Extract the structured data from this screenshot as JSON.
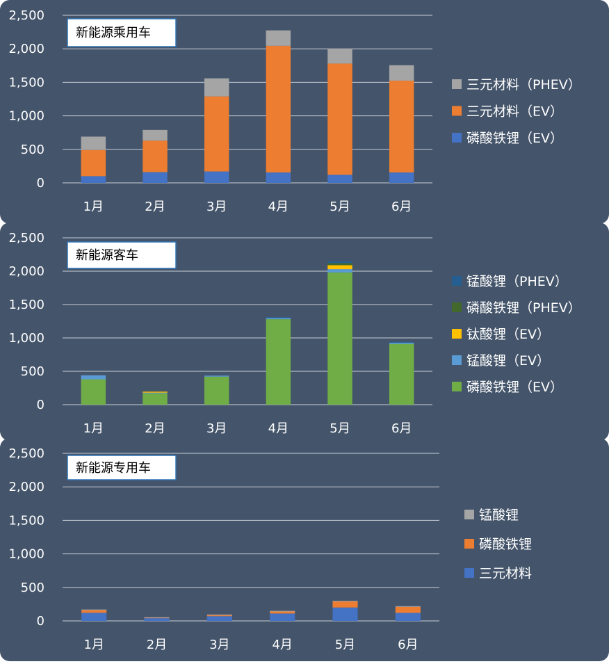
{
  "chart_data": [
    {
      "type": "bar",
      "stacked": true,
      "title": "新能源乘用车",
      "categories": [
        "1月",
        "2月",
        "3月",
        "4月",
        "5月",
        "6月"
      ],
      "ylim": [
        0,
        2500
      ],
      "yticks": [
        "0",
        "500",
        "1,000",
        "1,500",
        "2,000",
        "2,500"
      ],
      "ytick_values": [
        0,
        500,
        1000,
        1500,
        2000,
        2500
      ],
      "grid": true,
      "legend_position": "right",
      "series": [
        {
          "name": "磷酸铁锂（EV）",
          "color": "#4472c4",
          "values": [
            100,
            160,
            170,
            155,
            120,
            155
          ]
        },
        {
          "name": "三元材料（EV）",
          "color": "#ed7d31",
          "values": [
            390,
            470,
            1120,
            1890,
            1660,
            1370
          ]
        },
        {
          "name": "三元材料（PHEV）",
          "color": "#a5a5a5",
          "values": [
            200,
            160,
            270,
            230,
            220,
            230
          ]
        }
      ]
    },
    {
      "type": "bar",
      "stacked": true,
      "title": "新能源客车",
      "categories": [
        "1月",
        "2月",
        "3月",
        "4月",
        "5月",
        "6月"
      ],
      "ylim": [
        0,
        2500
      ],
      "yticks": [
        "0",
        "500",
        "1,000",
        "1,500",
        "2,000",
        "2,500"
      ],
      "ytick_values": [
        0,
        500,
        1000,
        1500,
        2000,
        2500
      ],
      "grid": true,
      "legend_position": "right",
      "series": [
        {
          "name": "磷酸铁锂（EV）",
          "color": "#70ad47",
          "values": [
            380,
            170,
            420,
            1280,
            1980,
            910
          ]
        },
        {
          "name": "锰酸锂（EV）",
          "color": "#5b9bd5",
          "values": [
            60,
            10,
            15,
            20,
            50,
            20
          ]
        },
        {
          "name": "钛酸锂（EV）",
          "color": "#ffc000",
          "values": [
            0,
            15,
            0,
            0,
            60,
            0
          ]
        },
        {
          "name": "磷酸铁锂（PHEV）",
          "color": "#43682b",
          "values": [
            0,
            0,
            0,
            0,
            30,
            0
          ]
        },
        {
          "name": "锰酸锂（PHEV）",
          "color": "#255e91",
          "values": [
            0,
            0,
            0,
            10,
            30,
            10
          ]
        }
      ]
    },
    {
      "type": "bar",
      "stacked": true,
      "title": "新能源专用车",
      "categories": [
        "1月",
        "2月",
        "3月",
        "4月",
        "5月",
        "6月"
      ],
      "ylim": [
        0,
        2500
      ],
      "yticks": [
        "0",
        "500",
        "1,000",
        "1,500",
        "2,000",
        "2,500"
      ],
      "ytick_values": [
        0,
        500,
        1000,
        1500,
        2000,
        2500
      ],
      "grid": true,
      "legend_position": "right",
      "series": [
        {
          "name": "三元材料",
          "color": "#4472c4",
          "values": [
            120,
            40,
            70,
            110,
            200,
            120
          ]
        },
        {
          "name": "磷酸铁锂",
          "color": "#ed7d31",
          "values": [
            40,
            10,
            20,
            30,
            90,
            90
          ]
        },
        {
          "name": "锰酸锂",
          "color": "#a5a5a5",
          "values": [
            10,
            5,
            5,
            10,
            10,
            10
          ]
        }
      ]
    }
  ]
}
